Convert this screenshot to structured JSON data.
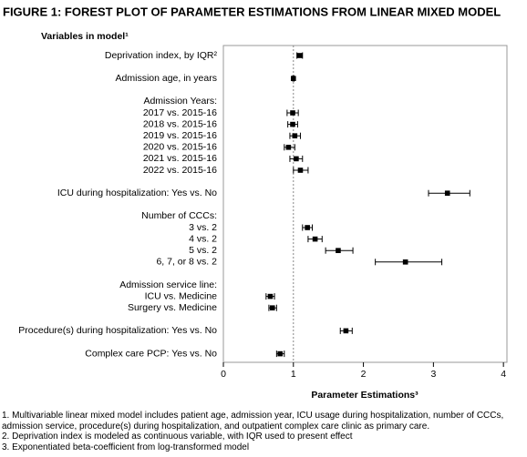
{
  "chart_data": {
    "type": "forest",
    "title": "FIGURE 1: FOREST PLOT OF PARAMETER ESTIMATIONS FROM LINEAR MIXED MODEL",
    "row_header": "Variables in model¹",
    "xlabel": "Parameter Estimations³",
    "categories": [
      "Deprivation index, by IQR²",
      null,
      "Admission age, in years",
      null,
      "Admission Years:",
      "2017 vs. 2015-16",
      "2018 vs. 2015-16",
      "2019 vs. 2015-16",
      "2020 vs. 2015-16",
      "2021 vs. 2015-16",
      "2022 vs. 2015-16",
      null,
      "ICU during hospitalization: Yes vs. No",
      null,
      "Number of CCCs:",
      "3 vs. 2",
      "4 vs. 2",
      "5 vs. 2",
      "6, 7, or 8 vs. 2",
      null,
      "Admission service line:",
      "ICU vs. Medicine",
      "Surgery vs. Medicine",
      null,
      "Procedure(s) during hospitalization: Yes vs. No",
      null,
      "Complex care PCP: Yes vs. No"
    ],
    "values": [
      1.09,
      null,
      1.0,
      null,
      null,
      0.99,
      0.99,
      1.02,
      0.93,
      1.04,
      1.1,
      null,
      3.2,
      null,
      null,
      1.2,
      1.31,
      1.64,
      2.6,
      null,
      null,
      0.67,
      0.7,
      null,
      1.75,
      null,
      0.81
    ],
    "lower": [
      1.05,
      null,
      0.99,
      null,
      null,
      0.91,
      0.92,
      0.95,
      0.87,
      0.95,
      1.0,
      null,
      2.93,
      null,
      null,
      1.13,
      1.21,
      1.46,
      2.17,
      null,
      null,
      0.61,
      0.65,
      null,
      1.67,
      null,
      0.76
    ],
    "upper": [
      1.13,
      null,
      1.01,
      null,
      null,
      1.07,
      1.06,
      1.1,
      1.02,
      1.13,
      1.21,
      null,
      3.52,
      null,
      null,
      1.27,
      1.41,
      1.85,
      3.12,
      null,
      null,
      0.73,
      0.76,
      null,
      1.84,
      null,
      0.87
    ],
    "color": "#000000",
    "reference_line": 1,
    "xlim": [
      0,
      4.05
    ],
    "xticks": [
      0,
      1,
      2,
      3,
      4
    ],
    "footnotes": [
      "1. Multivariable linear mixed model includes patient age, admission year, ICU usage during hospitalization, number of CCCs, admission service, procedure(s) during hospitalization, and outpatient complex care clinic as primary care.",
      "2. Deprivation index is modeled as continuous variable, with IQR used to present effect",
      "3. Exponentiated beta-coefficient from log-transformed model"
    ]
  }
}
